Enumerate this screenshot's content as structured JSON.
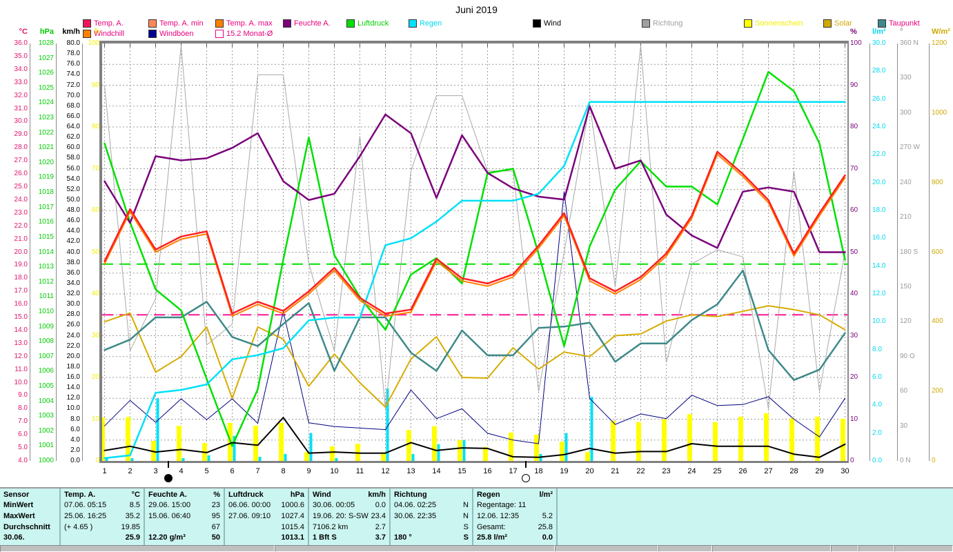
{
  "title": "Juni 2019",
  "legend": {
    "row1": [
      {
        "name": "temp-a",
        "label": "Temp. A.",
        "swatch": "#f0145a",
        "text": "#e8007d",
        "x": 120
      },
      {
        "name": "temp-a-min",
        "label": "Temp. A. min",
        "swatch": "#ff8757",
        "text": "#e8007d",
        "x": 215
      },
      {
        "name": "temp-a-max",
        "label": "Temp. A. max",
        "swatch": "#ff8000",
        "text": "#e8007d",
        "x": 312
      },
      {
        "name": "feuchte-a",
        "label": "Feuchte A.",
        "swatch": "#7a007a",
        "text": "#e8007d",
        "x": 410
      },
      {
        "name": "luftdruck",
        "label": "Luftdruck",
        "swatch": "#00e000",
        "text": "#00cc00",
        "x": 502
      },
      {
        "name": "regen",
        "label": "Regen",
        "swatch": "#00e0f8",
        "text": "#00d8ee",
        "x": 592
      },
      {
        "name": "wind",
        "label": "Wind",
        "swatch": "#000000",
        "text": "#000000",
        "x": 772
      },
      {
        "name": "richtung",
        "label": "Richtung",
        "swatch": "#a0a0a0",
        "text": "#a0a0a0",
        "x": 930
      },
      {
        "name": "sonnenschein",
        "label": "Sonnenschein",
        "swatch": "#ffff00",
        "text": "#f0f000",
        "x": 1078
      },
      {
        "name": "solar",
        "label": "Solar",
        "swatch": "#d0a800",
        "text": "#d0a800",
        "x": 1193
      },
      {
        "name": "taupunkt",
        "label": "Taupunkt",
        "swatch": "#3e8989",
        "text": "#e8007d",
        "x": 1272
      }
    ],
    "row2": [
      {
        "name": "windchill",
        "label": "Windchill",
        "swatch": "#ff8000",
        "text": "#e8007d",
        "x": 120
      },
      {
        "name": "windboeen",
        "label": "Windböen",
        "swatch": "#000090",
        "text": "#e8007d",
        "x": 215
      },
      {
        "name": "monat-avg",
        "label": "15.2 Monat-Ø",
        "swatch": "none",
        "text": "#e8007d",
        "x": 312
      }
    ]
  },
  "axes": {
    "left": [
      {
        "unit": "°C",
        "color": "#e0146e",
        "x": 6,
        "w": 34,
        "min": 4,
        "max": 36,
        "step": 1,
        "dec": 1
      },
      {
        "unit": "hPa",
        "color": "#00cc00",
        "x": 44,
        "w": 34,
        "min": 1000,
        "max": 1028,
        "step": 1,
        "dec": 0
      },
      {
        "unit": "km/h",
        "color": "#000000",
        "x": 82,
        "w": 34,
        "min": 0,
        "max": 80,
        "step": 2,
        "dec": 1
      },
      {
        "unit": "h",
        "color": "#f0f000",
        "x": 120,
        "w": 24,
        "min": 0,
        "max": 100,
        "step": 10,
        "dec": 0
      }
    ],
    "right": [
      {
        "unit": "%",
        "color": "#7a007a",
        "x": 1232,
        "w": 26,
        "min": 0,
        "max": 100,
        "step": 10,
        "dec": 0
      },
      {
        "unit": "l/m²",
        "color": "#00d8ee",
        "x": 1264,
        "w": 32,
        "min": 0,
        "max": 30,
        "step": 2,
        "dec": 1
      },
      {
        "unit": "°",
        "color": "#999999",
        "x": 1304,
        "w": 42,
        "min": 0,
        "max": 360,
        "step": 30,
        "dec": 0,
        "labels": [
          "360 N",
          "330",
          "300",
          "270 W",
          "240",
          "210",
          "180 S",
          "150",
          "120",
          "90 O",
          "60",
          "30",
          "0  N"
        ]
      },
      {
        "unit": "W/m²",
        "color": "#d0a800",
        "x": 1350,
        "w": 30,
        "min": 0,
        "max": 1200,
        "step": 200,
        "dec": 0
      }
    ]
  },
  "chart_data": {
    "type": "line",
    "x_days": [
      1,
      2,
      3,
      4,
      5,
      6,
      7,
      8,
      9,
      10,
      11,
      12,
      13,
      14,
      15,
      16,
      17,
      18,
      19,
      20,
      21,
      22,
      23,
      24,
      25,
      26,
      27,
      28,
      29,
      30
    ],
    "axis_ranges": {
      "degc": [
        4,
        36
      ],
      "hpa": [
        1000,
        1028
      ],
      "kmh": [
        0,
        80
      ],
      "h": [
        0,
        100
      ],
      "pct": [
        0,
        100
      ],
      "lm2": [
        0,
        30
      ],
      "deg": [
        0,
        360
      ],
      "wm2": [
        0,
        1200
      ]
    },
    "series": [
      {
        "name": "Richtung",
        "axis": "deg",
        "color": "#a8a8a8",
        "width": 1,
        "values": [
          324,
          95,
          140,
          358,
          100,
          118,
          333,
          333,
          170,
          95,
          280,
          45,
          250,
          315,
          315,
          250,
          250,
          60,
          180,
          308,
          150,
          358,
          85,
          170,
          182,
          176,
          45,
          250,
          60,
          180
        ]
      },
      {
        "name": "Windböen",
        "axis": "kmh",
        "color": "#000080",
        "width": 1,
        "values": [
          6.7,
          11.6,
          7.4,
          11.9,
          7.9,
          11.9,
          7.2,
          28.6,
          7.3,
          6.6,
          6.3,
          6.0,
          13.6,
          8.1,
          10.0,
          5.3,
          4.0,
          3.3,
          51.6,
          12.0,
          7.0,
          9.0,
          8.1,
          12.6,
          10.6,
          10.8,
          12.3,
          8.0,
          4.6,
          12.0
        ]
      },
      {
        "name": "Solar",
        "axis": "wm2",
        "color": "#d6ac00",
        "width": 2,
        "values": [
          400,
          425,
          255,
          300,
          385,
          180,
          385,
          350,
          215,
          307,
          225,
          155,
          293,
          357,
          240,
          238,
          325,
          264,
          313,
          300,
          360,
          365,
          402,
          420,
          415,
          430,
          446,
          435,
          420,
          377
        ]
      },
      {
        "name": "Taupunkt",
        "axis": "degc",
        "color": "#3e8989",
        "width": 2.5,
        "values": [
          12.5,
          13.3,
          15.0,
          15.0,
          16.2,
          13.5,
          12.8,
          14.5,
          16.1,
          10.9,
          15.0,
          15.0,
          12.3,
          10.9,
          14.0,
          12.1,
          12.1,
          14.2,
          14.3,
          14.6,
          11.6,
          13.0,
          13.0,
          14.8,
          16.0,
          18.6,
          12.5,
          10.2,
          11.0,
          13.8
        ]
      },
      {
        "name": "Luftdruck",
        "axis": "hpa",
        "color": "#00e000",
        "width": 2.5,
        "values": [
          1021.3,
          1016.0,
          1011.5,
          1010.1,
          1005.5,
          1001.0,
          1004.8,
          1013.5,
          1021.7,
          1013.8,
          1011.0,
          1008.8,
          1012.5,
          1013.6,
          1011.9,
          1019.3,
          1019.6,
          1013.9,
          1007.7,
          1014.4,
          1018.2,
          1020.1,
          1018.4,
          1018.4,
          1017.2,
          1021.6,
          1026.1,
          1024.8,
          1021.3,
          1013.5
        ]
      },
      {
        "name": "Feuchte A.",
        "axis": "pct",
        "color": "#7a007a",
        "width": 2.5,
        "values": [
          67,
          57,
          73,
          72,
          72.5,
          75,
          78.5,
          67,
          62.5,
          64,
          73,
          83,
          78.5,
          63,
          78,
          69,
          65.3,
          63.3,
          62.6,
          85,
          70,
          72,
          59,
          54,
          51,
          64.5,
          65.5,
          64.5,
          50,
          50
        ]
      },
      {
        "name": "Regen Summe",
        "axis": "lm2",
        "color": "#00e0f8",
        "width": 2.5,
        "values": [
          0.2,
          0.4,
          4.9,
          5.1,
          5.5,
          7.3,
          7.6,
          8.1,
          10.1,
          10.3,
          10.3,
          15.5,
          16.0,
          17.2,
          18.7,
          18.7,
          18.7,
          19.2,
          21.2,
          25.8,
          25.8,
          25.8,
          25.8,
          25.8,
          25.8,
          25.8,
          25.8,
          25.8,
          25.8,
          25.8
        ]
      },
      {
        "name": "Windchill",
        "axis": "degc",
        "color": "#ff8000",
        "width": 2,
        "values": [
          19.1,
          23.1,
          20.0,
          21.0,
          21.4,
          15.1,
          16.0,
          15.3,
          16.8,
          18.6,
          16.3,
          15.1,
          15.4,
          19.3,
          17.8,
          17.4,
          18.1,
          20.3,
          22.8,
          17.8,
          16.8,
          17.9,
          19.7,
          22.6,
          27.5,
          25.8,
          23.8,
          19.7,
          22.8,
          25.7
        ]
      },
      {
        "name": "Temp. A.",
        "axis": "degc",
        "color": "#ff2020",
        "width": 2.5,
        "values": [
          19.3,
          23.3,
          20.2,
          21.2,
          21.6,
          15.3,
          16.2,
          15.5,
          17.0,
          18.8,
          16.5,
          15.3,
          15.6,
          19.5,
          18.0,
          17.6,
          18.3,
          20.5,
          23.0,
          18.0,
          17.0,
          18.1,
          19.9,
          22.8,
          27.7,
          26.0,
          24.0,
          19.9,
          23.0,
          25.9
        ]
      },
      {
        "name": "Wind",
        "axis": "kmh",
        "color": "#000000",
        "width": 2,
        "values": [
          2.0,
          2.8,
          1.7,
          2.2,
          1.6,
          3.5,
          3.0,
          8.3,
          1.5,
          1.7,
          1.5,
          1.5,
          3.5,
          2.0,
          2.5,
          2.4,
          0.8,
          0.7,
          1.2,
          2.4,
          1.5,
          1.8,
          1.8,
          3.3,
          2.8,
          2.8,
          2.8,
          1.3,
          0.7,
          3.2
        ]
      }
    ],
    "bars": [
      {
        "name": "Sonnenschein",
        "axis": "h",
        "color": "#ffff00",
        "width": 7,
        "offset": -3,
        "values": [
          10.4,
          10.5,
          4.8,
          8.4,
          4.3,
          9.1,
          8.4,
          9.1,
          2.1,
          3.5,
          4.1,
          2.1,
          7.4,
          8.3,
          5.0,
          3.3,
          6.8,
          6.3,
          4.6,
          2.1,
          9.6,
          9.3,
          10.0,
          11.2,
          9.3,
          10.6,
          11.4,
          10.2,
          10.6,
          10.1
        ]
      },
      {
        "name": "Regen Tag",
        "axis": "lm2",
        "color": "#00e0f8",
        "width": 4,
        "offset": 3,
        "values": [
          0.2,
          0.2,
          4.5,
          0.2,
          0.4,
          1.8,
          0.3,
          0.5,
          2.0,
          0.2,
          0,
          5.2,
          0.5,
          1.2,
          1.5,
          0,
          0,
          0.5,
          2.0,
          4.6,
          0,
          0,
          0,
          0,
          0,
          0,
          0,
          0,
          0,
          0
        ]
      }
    ],
    "ref_lines": [
      {
        "name": "15.2 Monat-Ø",
        "axis": "degc",
        "value": 15.2,
        "color": "#ff1493"
      },
      {
        "name": "Luftdruck Mittel",
        "axis": "hpa",
        "value": 1013.2,
        "color": "#00e000"
      }
    ],
    "moon": [
      {
        "day": 3.5,
        "phase": "new"
      },
      {
        "day": 17.5,
        "phase": "full"
      }
    ],
    "title": "Juni 2019",
    "xlabel": "Tag",
    "legend_position": "top",
    "grid": true
  },
  "table": {
    "bg": "#cbf5f0",
    "row_labels": [
      "Sensor",
      "MinWert",
      "MaxWert",
      "Durchschnitt",
      "30.06."
    ],
    "columns": [
      {
        "header": "Temp. A.",
        "unit": "°C",
        "w": 122,
        "cells": [
          [
            "07.06.  05:15",
            "8.5"
          ],
          [
            "25.06.  16:25",
            "35.2"
          ],
          [
            "(+ 4.65 )",
            "19.85"
          ],
          [
            "",
            "25.9"
          ]
        ]
      },
      {
        "header": "Feuchte A.",
        "unit": "%",
        "w": 116,
        "cells": [
          [
            "29.06.  15:00",
            "23"
          ],
          [
            "15.06.  06:40",
            "95"
          ],
          [
            "",
            "67"
          ],
          [
            "12.20 g/m³",
            "50"
          ]
        ]
      },
      {
        "header": "Luftdruck",
        "unit": "hPa",
        "w": 122,
        "cells": [
          [
            "06.06.  00:00",
            "1000.6"
          ],
          [
            "27.06.  09:10",
            "1027.4"
          ],
          [
            "",
            "1015.4"
          ],
          [
            "",
            "1013.1"
          ]
        ]
      },
      {
        "header": "Wind",
        "unit": "km/h",
        "w": 118,
        "cells": [
          [
            "30.06.  00:05",
            "0.0"
          ],
          [
            "19.06.  20: S-SW",
            "23.4"
          ],
          [
            "7106.2 km",
            "2.7"
          ],
          [
            "1 Bft S",
            "3.7"
          ]
        ]
      },
      {
        "header": "Richtung",
        "unit": "",
        "w": 120,
        "cells": [
          [
            "04.06.  02:25",
            "N"
          ],
          [
            "30.06.  22:35",
            "N"
          ],
          [
            "",
            "S"
          ],
          [
            "180 °",
            "S"
          ]
        ]
      },
      {
        "header": "Regen",
        "unit": "l/m²",
        "w": 122,
        "cells": [
          [
            "Regentage: 11",
            ""
          ],
          [
            "12.06.  12:35",
            "5.2"
          ],
          [
            "Gesamt:",
            "25.8"
          ],
          [
            "25.8 l/m²",
            "0.0"
          ]
        ]
      },
      {
        "header": "",
        "unit": "",
        "w": 110,
        "cells": [
          [
            "",
            ""
          ],
          [
            "",
            ""
          ],
          [
            "",
            ""
          ],
          [
            "",
            ""
          ]
        ]
      }
    ],
    "label_col_w": 88
  },
  "statusbar": {
    "segments": [
      398,
      406,
      150,
      78,
      172,
      40,
      52,
      85
    ]
  }
}
